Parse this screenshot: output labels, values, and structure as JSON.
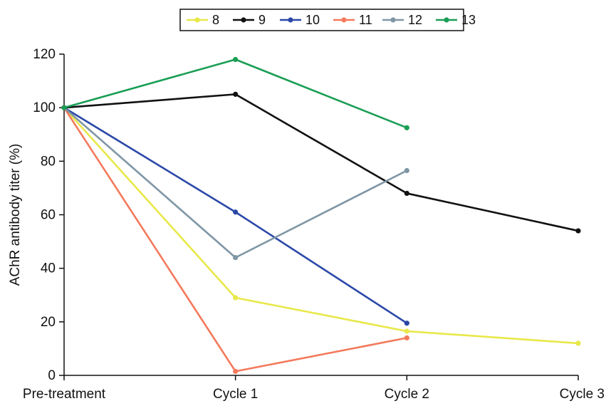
{
  "chart_data": {
    "type": "line",
    "title": "",
    "xlabel": "",
    "ylabel": "AChR antibody titer (%)",
    "categories": [
      "Pre-treatment",
      "Cycle 1",
      "Cycle 2",
      "Cycle 3"
    ],
    "ylim": [
      0,
      120
    ],
    "yticks": [
      0,
      20,
      40,
      60,
      80,
      100,
      120
    ],
    "grid": false,
    "legend_placement": "top-center",
    "series": [
      {
        "name": "8",
        "color": "#e8e84a",
        "values": [
          100,
          29,
          16.5,
          12
        ]
      },
      {
        "name": "9",
        "color": "#111111",
        "values": [
          100,
          105,
          68,
          54
        ]
      },
      {
        "name": "10",
        "color": "#2b48a8",
        "values": [
          100,
          61,
          19.5,
          null
        ]
      },
      {
        "name": "11",
        "color": "#f47a5c",
        "values": [
          100,
          1.5,
          14,
          null
        ]
      },
      {
        "name": "12",
        "color": "#7f96a5",
        "values": [
          100,
          44,
          76.5,
          null
        ]
      },
      {
        "name": "13",
        "color": "#1a9e55",
        "values": [
          100,
          118,
          92.5,
          null
        ]
      }
    ]
  }
}
